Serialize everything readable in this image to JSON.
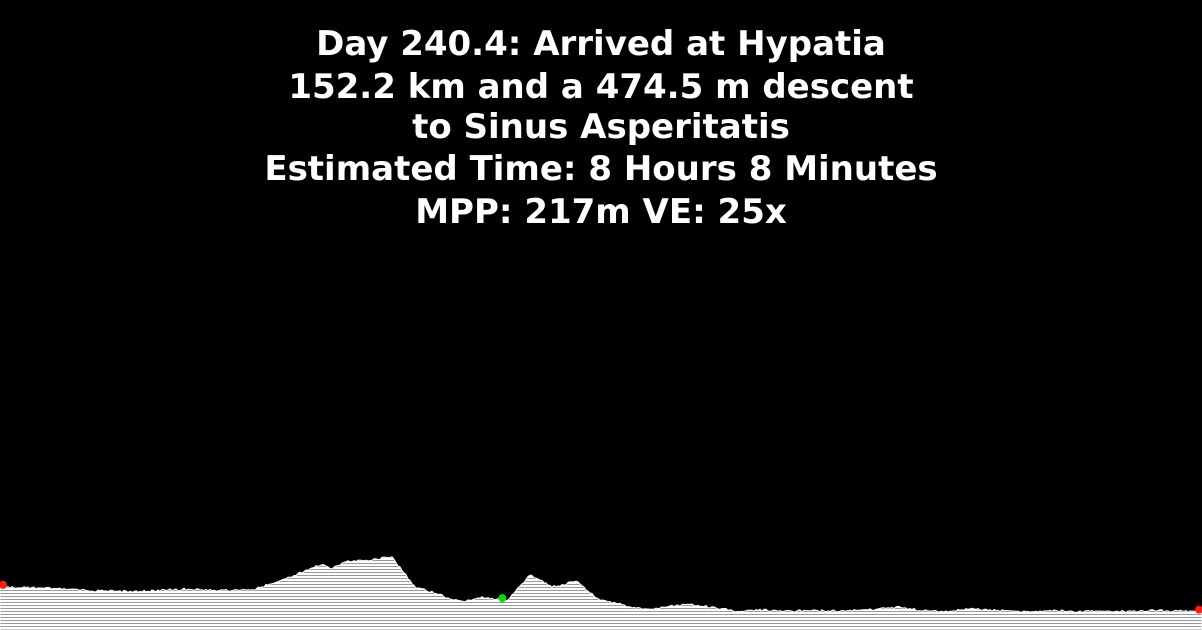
{
  "header": {
    "line1": "Day 240.4: Arrived at Hypatia",
    "line2": "152.2 km and a 474.5 m descent",
    "line3": "to Sinus Asperitatis",
    "line4": "Estimated Time: 8 Hours 8 Minutes",
    "line5": "MPP: 217m VE: 25x"
  },
  "colors": {
    "background": "#000000",
    "text": "#ffffff",
    "terrain": "#ffffff",
    "hatch": "#9a9a9a",
    "endpoint_marker": "#ff1a1a",
    "current_marker": "#00e000"
  },
  "chart_data": {
    "type": "area",
    "x_unit": "km",
    "y_unit": "m",
    "vertical_exaggeration": 25,
    "meters_per_pixel": 217,
    "xlim": [
      0,
      260.8
    ],
    "x": [
      0,
      10,
      20,
      30,
      40,
      50,
      55,
      60,
      65,
      70,
      72,
      75,
      80,
      85,
      90,
      95,
      97,
      100,
      105,
      110,
      115,
      120,
      125,
      130,
      135,
      140,
      145,
      150,
      155,
      160,
      165,
      170,
      175,
      180,
      185,
      190,
      195,
      200,
      205,
      210,
      215,
      220,
      225,
      230,
      235,
      240,
      245,
      250,
      255,
      260.8
    ],
    "y": [
      -60,
      -70,
      -95,
      -100,
      -80,
      -90,
      -80,
      -20,
      60,
      140,
      100,
      160,
      175,
      200,
      -60,
      -120,
      -155,
      -185,
      -150,
      -175,
      40,
      -60,
      -10,
      -170,
      -215,
      -255,
      -230,
      -210,
      -240,
      -270,
      -260,
      -275,
      -265,
      -270,
      -265,
      -255,
      -235,
      -265,
      -275,
      -250,
      -260,
      -275,
      -270,
      -265,
      -275,
      -265,
      -275,
      -265,
      -270,
      -275
    ],
    "markers": [
      {
        "x": 0,
        "y": -60,
        "color": "#ff1a1a"
      },
      {
        "x": 109,
        "y": -175,
        "color": "#00e000"
      },
      {
        "x": 260.8,
        "y": -275,
        "color": "#ff1a1a"
      }
    ]
  }
}
